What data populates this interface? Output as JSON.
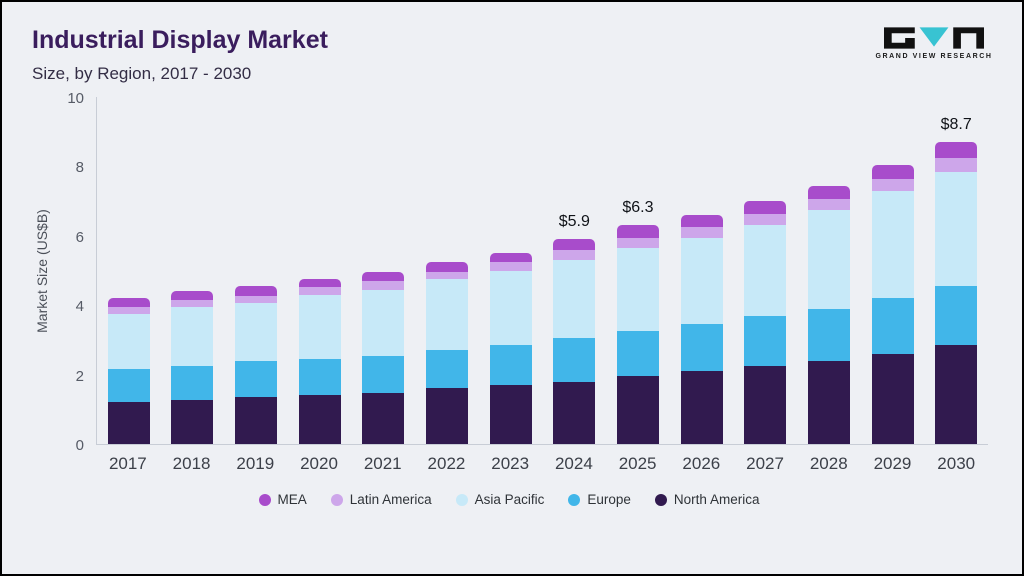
{
  "header": {
    "title": "Industrial Display Market",
    "subtitle": "Size, by Region, 2017 - 2030",
    "logo_text": "GRAND VIEW RESEARCH"
  },
  "chart_data": {
    "type": "bar",
    "stacked": true,
    "title": "Industrial Display Market Size, by Region, 2017 - 2030",
    "xlabel": "",
    "ylabel": "Market Size (US$B)",
    "ylim": [
      0,
      10
    ],
    "yticks": [
      0,
      2,
      4,
      6,
      8,
      10
    ],
    "grid": false,
    "legend_position": "bottom",
    "categories": [
      "2017",
      "2018",
      "2019",
      "2020",
      "2021",
      "2022",
      "2023",
      "2024",
      "2025",
      "2026",
      "2027",
      "2028",
      "2029",
      "2030"
    ],
    "series": [
      {
        "name": "North America",
        "color": "#311a4f",
        "values": [
          1.2,
          1.27,
          1.35,
          1.4,
          1.47,
          1.6,
          1.7,
          1.8,
          1.95,
          2.1,
          2.25,
          2.4,
          2.6,
          2.85
        ]
      },
      {
        "name": "Europe",
        "color": "#41b6e9",
        "values": [
          0.95,
          0.98,
          1.05,
          1.05,
          1.08,
          1.1,
          1.15,
          1.25,
          1.3,
          1.35,
          1.45,
          1.5,
          1.6,
          1.7
        ]
      },
      {
        "name": "Asia Pacific",
        "color": "#c7e9f8",
        "values": [
          1.6,
          1.7,
          1.65,
          1.85,
          1.9,
          2.05,
          2.15,
          2.25,
          2.4,
          2.5,
          2.6,
          2.85,
          3.1,
          3.3
        ]
      },
      {
        "name": "Latin America",
        "color": "#cda6ea",
        "values": [
          0.2,
          0.2,
          0.22,
          0.22,
          0.24,
          0.22,
          0.24,
          0.28,
          0.3,
          0.3,
          0.32,
          0.32,
          0.35,
          0.4
        ]
      },
      {
        "name": "MEA",
        "color": "#a84ccb",
        "values": [
          0.25,
          0.25,
          0.28,
          0.23,
          0.26,
          0.28,
          0.26,
          0.32,
          0.35,
          0.35,
          0.38,
          0.38,
          0.4,
          0.45
        ]
      }
    ],
    "annotations": [
      {
        "category": "2024",
        "label": "$5.9"
      },
      {
        "category": "2025",
        "label": "$6.3"
      },
      {
        "category": "2030",
        "label": "$8.7"
      }
    ],
    "legend": [
      "MEA",
      "Latin America",
      "Asia Pacific",
      "Europe",
      "North America"
    ]
  }
}
